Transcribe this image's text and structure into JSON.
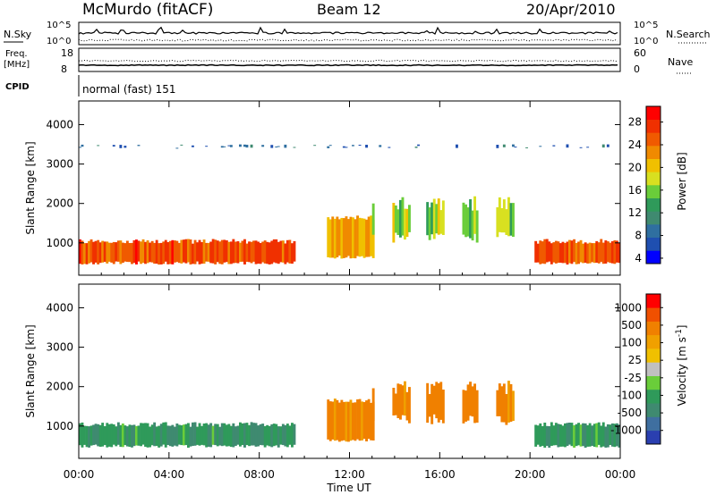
{
  "header": {
    "title": "McMurdo (fitACF)",
    "beam": "Beam 12",
    "date": "20/Apr/2010"
  },
  "top_panels": {
    "nsky_label": "N.Sky",
    "nsearch_label": "N.Search",
    "nsky_ticks": [
      "10^5",
      "10^0"
    ],
    "nsearch_ticks": [
      "10^5",
      "10^0"
    ],
    "freq_label": "Freq.",
    "freq_unit": "[MHz]",
    "freq_ticks": [
      "18",
      "8"
    ],
    "nave_label": "Nave",
    "nave_ticks": [
      "60",
      "0"
    ],
    "cpid_label": "CPID",
    "cpid_value": "normal (fast) 151"
  },
  "chart_data": [
    {
      "type": "heatmap",
      "quantity": "Power",
      "ylabel": "Slant Range [km]",
      "ylim": [
        180,
        4600
      ],
      "yticks": [
        1000,
        2000,
        3000,
        4000
      ],
      "xlim_hours": [
        0,
        24
      ],
      "xticks": [
        "00:00",
        "04:00",
        "08:00",
        "12:00",
        "16:00",
        "20:00",
        "00:00"
      ],
      "colorbar": {
        "label": "Power [dB]",
        "ticks": [
          "28",
          "24",
          "20",
          "16",
          "12",
          "8",
          "4"
        ],
        "colors": [
          "#0000ff",
          "#1f4fb0",
          "#2f6fa0",
          "#3f8a70",
          "#2f9a5a",
          "#6acd3a",
          "#d8e020",
          "#f0c000",
          "#f08a00",
          "#f05a00",
          "#f03000",
          "#ff0000"
        ]
      },
      "features": [
        {
          "name": "low-range band",
          "t_start": 0,
          "t_end": 9.5,
          "range_km": [
            450,
            1100
          ],
          "value_db": 26
        },
        {
          "name": "recovery",
          "t_start": 11,
          "t_end": 13,
          "range_km": [
            600,
            1700
          ],
          "value_db": 22
        },
        {
          "name": "scattered streaks",
          "t_start": 13,
          "t_end": 20,
          "range_km": [
            1000,
            2200
          ],
          "value_db": 16
        },
        {
          "name": "evening band",
          "t_start": 20.2,
          "t_end": 24,
          "range_km": [
            450,
            1100
          ],
          "value_db": 26
        },
        {
          "name": "3500 km echoes",
          "t_start": 0,
          "t_end": 23.5,
          "range_km": [
            3400,
            3500
          ],
          "value_db": 6
        }
      ]
    },
    {
      "type": "heatmap",
      "quantity": "Velocity",
      "ylabel": "Slant Range [km]",
      "ylim": [
        180,
        4600
      ],
      "yticks": [
        1000,
        2000,
        3000,
        4000
      ],
      "xlim_hours": [
        0,
        24
      ],
      "xticks": [
        "00:00",
        "04:00",
        "08:00",
        "12:00",
        "16:00",
        "20:00",
        "00:00"
      ],
      "xlabel": "Time UT",
      "colorbar": {
        "label": "Velocity [m s^-1]",
        "ticks": [
          "1000",
          "500",
          "100",
          "25",
          "-25",
          "-100",
          "-500",
          "-1000"
        ],
        "colors": [
          "#2a3fb0",
          "#3f6fa0",
          "#3f8a70",
          "#2f9a5a",
          "#6acd3a",
          "#c0c0c0",
          "#f0c000",
          "#f0a000",
          "#f08000",
          "#f05000",
          "#ff0000"
        ]
      },
      "features": [
        {
          "name": "low-range band",
          "t_start": 0,
          "t_end": 9.5,
          "range_km": [
            450,
            1100
          ],
          "value_ms": 150
        },
        {
          "name": "recovery",
          "t_start": 11,
          "t_end": 13,
          "range_km": [
            600,
            1700
          ],
          "value_ms": -250
        },
        {
          "name": "scattered streaks",
          "t_start": 13,
          "t_end": 20,
          "range_km": [
            1000,
            2200
          ],
          "value_ms": -250
        },
        {
          "name": "evening band",
          "t_start": 20.2,
          "t_end": 24,
          "range_km": [
            450,
            1100
          ],
          "value_ms": 150
        }
      ]
    }
  ]
}
